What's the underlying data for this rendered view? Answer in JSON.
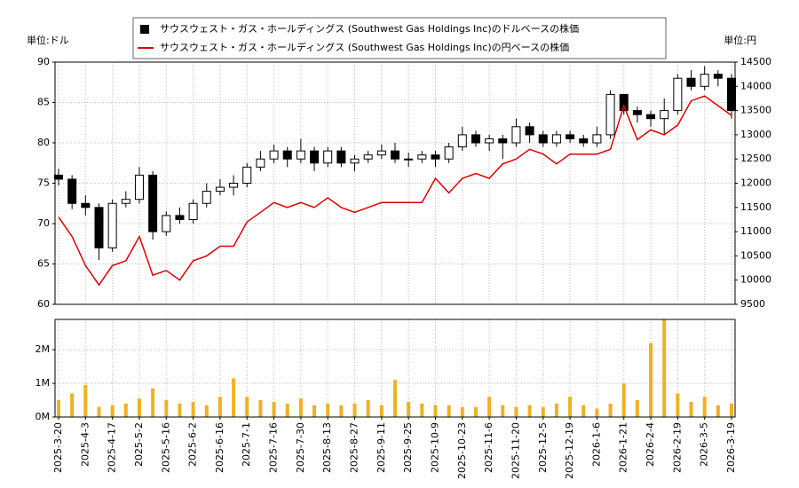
{
  "chart_data": [
    {
      "type": "candlestick",
      "y_unit": "単位:ドル",
      "y2_unit": "単位:円",
      "x": [
        0,
        5,
        10,
        15,
        20,
        25,
        30,
        35,
        40,
        45,
        50,
        55,
        60,
        65,
        70,
        75,
        80,
        85,
        90,
        95,
        100,
        105,
        110,
        115,
        120,
        125,
        130,
        135,
        140,
        145,
        150,
        155,
        160,
        165,
        170,
        175,
        180,
        185,
        190,
        195,
        200,
        205,
        210,
        215,
        220,
        225,
        230,
        235,
        240,
        245,
        250
      ],
      "xlim": [
        0,
        250
      ],
      "ylim": [
        60,
        90
      ],
      "yticks": [
        60,
        65,
        70,
        75,
        80,
        85,
        90
      ],
      "y2lim": [
        9500,
        14500
      ],
      "y2ticks": [
        9500,
        10000,
        10500,
        11000,
        11500,
        12000,
        12500,
        13000,
        13500,
        14000,
        14500
      ],
      "grid": true,
      "series": [
        {
          "name": "サウスウェスト・ガス・ホールディングス (Southwest Gas Holdings Inc)のドルベースの株価",
          "type": "candlestick",
          "color": "#000000",
          "open": [
            76,
            75.5,
            72.5,
            72,
            67,
            72.5,
            73,
            76,
            69,
            71,
            70.5,
            72.5,
            74,
            74.5,
            75,
            77,
            78,
            79,
            78,
            79,
            77.5,
            79,
            77.5,
            78,
            78.5,
            79,
            78,
            78,
            78.5,
            78,
            79.5,
            81,
            80,
            80.5,
            80,
            82,
            81,
            80,
            81,
            80.5,
            80,
            81,
            86,
            84,
            83.5,
            83,
            84,
            88,
            87,
            88.5,
            88
          ],
          "high": [
            76.8,
            76,
            73.5,
            72.5,
            73,
            74,
            77,
            76.5,
            71.5,
            72,
            73,
            75,
            75.5,
            76,
            77.5,
            79,
            79.8,
            79.5,
            80.5,
            79.5,
            79.5,
            79.5,
            78.5,
            79,
            79.8,
            80,
            78.8,
            79,
            79,
            80,
            82,
            81.5,
            81,
            81,
            83,
            82.5,
            81.5,
            81.5,
            81.5,
            81,
            82,
            86.5,
            86,
            84.5,
            84,
            85.5,
            88.5,
            89,
            89.5,
            89,
            88.5
          ],
          "low": [
            74.7,
            71.8,
            71,
            65.5,
            66.5,
            72,
            72.5,
            68,
            68.5,
            70,
            70,
            72,
            73.5,
            73.5,
            74.5,
            76.5,
            77.5,
            77,
            77.5,
            76.5,
            77,
            77,
            76.5,
            77.5,
            78,
            77.5,
            77,
            77.5,
            77,
            77.5,
            79,
            79.5,
            79,
            78,
            79.5,
            80,
            79.5,
            79.5,
            80,
            79.5,
            79.5,
            80.5,
            83.5,
            82.5,
            82,
            81,
            83.5,
            86.5,
            86.5,
            87,
            83
          ],
          "close": [
            75.5,
            72.5,
            72,
            67,
            72.5,
            73,
            76,
            69,
            71,
            70.5,
            72.5,
            74,
            74.5,
            75,
            77,
            78,
            79,
            78,
            79,
            77.5,
            79,
            77.5,
            78,
            78.5,
            79,
            78,
            78,
            78.5,
            78,
            79.5,
            81,
            80,
            80.5,
            80,
            82,
            81,
            80,
            81,
            80.5,
            80,
            81,
            86,
            84,
            83.5,
            83,
            84,
            88,
            87,
            88.5,
            88,
            84
          ]
        },
        {
          "name": "サウスウェスト・ガス・ホールディングス (Southwest Gas Holdings Inc)の円ベースの株価",
          "type": "line",
          "axis": "y2",
          "color": "#dd0000",
          "values": [
            11300,
            10900,
            10300,
            9900,
            10300,
            10400,
            10900,
            10100,
            10200,
            10000,
            10400,
            10500,
            10700,
            10700,
            11200,
            11400,
            11600,
            11500,
            11600,
            11500,
            11700,
            11500,
            11400,
            11500,
            11600,
            11600,
            11600,
            11600,
            12100,
            11800,
            12100,
            12200,
            12100,
            12400,
            12500,
            12700,
            12600,
            12400,
            12600,
            12600,
            12600,
            12700,
            13600,
            12900,
            13100,
            13000,
            13200,
            13700,
            13800,
            13600,
            13400
          ]
        }
      ]
    },
    {
      "type": "bar",
      "color": "#f0b020",
      "values": [
        500000,
        700000,
        950000,
        300000,
        350000,
        400000,
        550000,
        850000,
        500000,
        400000,
        450000,
        350000,
        600000,
        1150000,
        600000,
        500000,
        450000,
        400000,
        550000,
        350000,
        400000,
        350000,
        400000,
        500000,
        350000,
        1100000,
        450000,
        400000,
        350000,
        350000,
        300000,
        300000,
        600000,
        350000,
        300000,
        350000,
        300000,
        400000,
        600000,
        350000,
        250000,
        400000,
        1000000,
        500000,
        2200000,
        2900000,
        700000,
        450000,
        600000,
        350000,
        400000
      ],
      "ylim": [
        0,
        2900000
      ],
      "yticks": [
        {
          "value": 0,
          "label": "0M"
        },
        {
          "value": 1000000,
          "label": "1M"
        },
        {
          "value": 2000000,
          "label": "2M"
        }
      ],
      "xticks": [
        {
          "value": 0,
          "label": "2025-3-20"
        },
        {
          "value": 10,
          "label": "2025-4-3"
        },
        {
          "value": 20,
          "label": "2025-4-17"
        },
        {
          "value": 30,
          "label": "2025-5-2"
        },
        {
          "value": 40,
          "label": "2025-5-16"
        },
        {
          "value": 50,
          "label": "2025-6-2"
        },
        {
          "value": 60,
          "label": "2025-6-16"
        },
        {
          "value": 70,
          "label": "2025-7-1"
        },
        {
          "value": 80,
          "label": "2025-7-16"
        },
        {
          "value": 90,
          "label": "2025-7-30"
        },
        {
          "value": 100,
          "label": "2025-8-13"
        },
        {
          "value": 110,
          "label": "2025-8-27"
        },
        {
          "value": 120,
          "label": "2025-9-11"
        },
        {
          "value": 130,
          "label": "2025-9-25"
        },
        {
          "value": 140,
          "label": "2025-10-9"
        },
        {
          "value": 150,
          "label": "2025-10-23"
        },
        {
          "value": 160,
          "label": "2025-11-6"
        },
        {
          "value": 170,
          "label": "2025-11-20"
        },
        {
          "value": 180,
          "label": "2025-12-5"
        },
        {
          "value": 190,
          "label": "2025-12-19"
        },
        {
          "value": 200,
          "label": "2026-1-6"
        },
        {
          "value": 210,
          "label": "2026-1-21"
        },
        {
          "value": 220,
          "label": "2026-2-4"
        },
        {
          "value": 230,
          "label": "2026-2-19"
        },
        {
          "value": 240,
          "label": "2026-3-5"
        },
        {
          "value": 250,
          "label": "2026-3-19"
        }
      ]
    }
  ]
}
